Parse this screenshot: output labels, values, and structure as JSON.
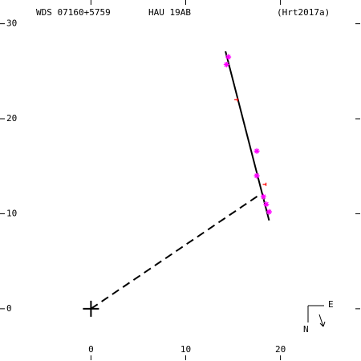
{
  "chart_data": {
    "type": "scatter",
    "title": "WDS 07160+5759",
    "subtitle": "HAU  19AB",
    "reference": "(Hrt2017a)",
    "xlim": [
      -9.6,
      28.5
    ],
    "ylim": [
      -5.5,
      32.5
    ],
    "xticks": [
      0,
      10,
      20
    ],
    "yticks": [
      0,
      10,
      20,
      30
    ],
    "series": [
      {
        "color": "#ff00ff",
        "x": [
          14.5,
          14.3,
          17.5,
          17.5,
          18.2,
          18.5,
          18.8
        ],
        "y": [
          26.5,
          25.7,
          16.6,
          14.0,
          11.8,
          11.0,
          10.2
        ]
      },
      {
        "color": "#ff0000",
        "x": [
          15.3,
          18.3
        ],
        "y": [
          22.0,
          13.1
        ]
      }
    ],
    "orbit": {
      "color": "#000000",
      "x": [
        14.2,
        18.8
      ],
      "y": [
        27.1,
        9.3
      ]
    },
    "node_line": {
      "color": "#000000",
      "x": [
        0,
        17.8
      ],
      "y": [
        0,
        12.0
      ]
    },
    "compass": {
      "east": "E",
      "north": "N"
    }
  }
}
